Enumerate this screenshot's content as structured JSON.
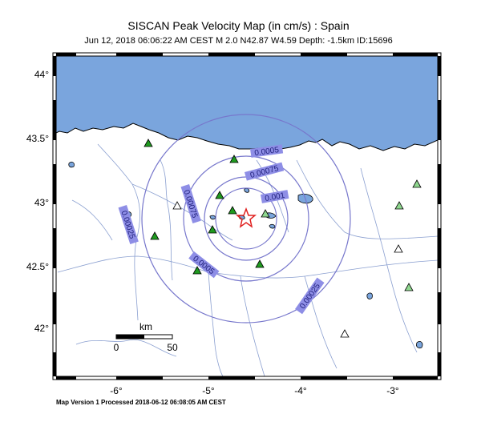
{
  "map": {
    "title": "SISCAN Peak Velocity Map (in cm/s) : Spain",
    "subtitle": "Jun 12, 2018 06:06:22 AM CEST   M 2.0   N42.87 W4.59   Depth: -1.5km   ID:15696",
    "footer": "Map Version 1 Processed 2018-06-12 06:08:05 AM CEST",
    "lat_ticks": [
      "44°",
      "43.5°",
      "43°",
      "42.5°",
      "42°"
    ],
    "lon_ticks": [
      "-6°",
      "-5°",
      "-4°",
      "-3°"
    ],
    "scale_bar": {
      "unit": "km",
      "start": "0",
      "end": "50"
    },
    "contour_labels": [
      "0.0005",
      "0.00075",
      "0.001",
      "0.00075",
      "0.00025",
      "0.0005",
      "0.00025"
    ],
    "colors": {
      "sea": "#7aa5dd",
      "land": "#ffffff",
      "contour": "#7777cc",
      "label_box": "#8e8ee6",
      "epicenter": "#e0201f",
      "station_green": "#1f9a1f",
      "station_light": "#8fd88f"
    },
    "epicenter_icon": "star-icon",
    "station_icon": "triangle-icon"
  }
}
